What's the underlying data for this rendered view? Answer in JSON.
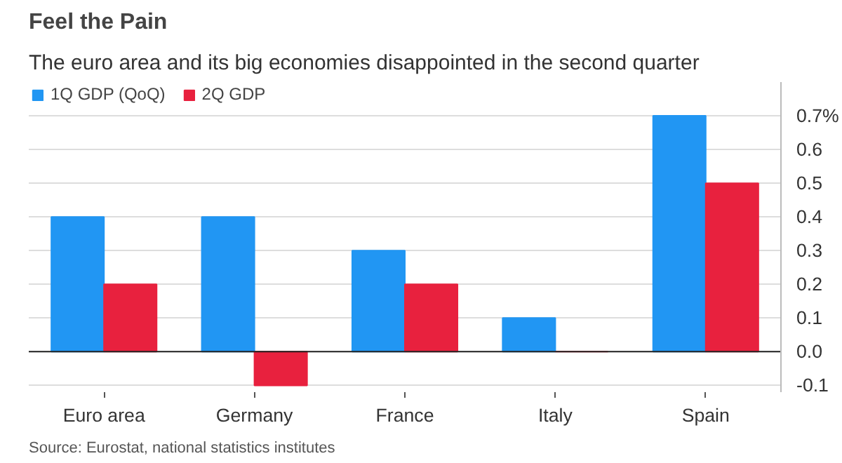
{
  "chart_data": {
    "type": "bar",
    "title": "Feel the Pain",
    "subtitle": "The euro area and its big economies disappointed in the second quarter",
    "categories": [
      "Euro area",
      "Germany",
      "France",
      "Italy",
      "Spain"
    ],
    "series": [
      {
        "name": "1Q GDP (QoQ)",
        "color": "#2196f3",
        "values": [
          0.4,
          0.4,
          0.3,
          0.1,
          0.7
        ]
      },
      {
        "name": "2Q GDP",
        "color": "#e8213e",
        "values": [
          0.2,
          -0.1,
          0.2,
          0.0,
          0.5
        ]
      }
    ],
    "ylim": [
      -0.12,
      0.8
    ],
    "yticks": [
      -0.1,
      {
        "value": 0.0,
        "label": "0.0"
      },
      0.1,
      0.2,
      0.3,
      0.4,
      0.5,
      0.6,
      {
        "value": 0.7,
        "label": "0.7%"
      }
    ],
    "grid": "y",
    "legend": "top left",
    "annotations": [
      "Source: Eurostat, national statistics institutes"
    ]
  }
}
